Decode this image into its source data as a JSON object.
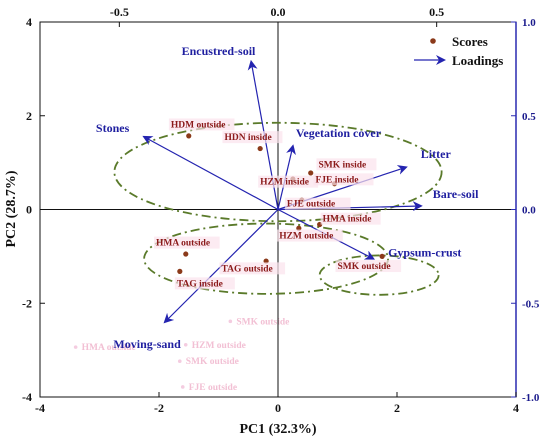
{
  "chart_data": {
    "type": "scatter",
    "title": "",
    "xlabel": "PC1 (32.3%)",
    "ylabel": "PC2 (28.7%)",
    "xlim": [
      -4,
      4
    ],
    "ylim": [
      -4,
      4
    ],
    "xticks": [
      "-4",
      "-2",
      "0",
      "2",
      "4"
    ],
    "yticks": [
      "-4",
      "-2",
      "0",
      "2",
      "4"
    ],
    "top_axis": {
      "lim": [
        -0.75,
        0.75
      ],
      "ticks": [
        "-0.5",
        "0.0",
        "0.5"
      ],
      "tick_values": [
        -0.5,
        0,
        0.5
      ]
    },
    "right_axis": {
      "lim": [
        -1.0,
        1.0
      ],
      "ticks": [
        "-1.0",
        "-0.5",
        "0.0",
        "0.5",
        "1.0"
      ],
      "tick_values": [
        -1.0,
        -0.5,
        0,
        0.5,
        1.0
      ]
    },
    "legend": {
      "placement": "top-right",
      "items": [
        {
          "label": "Scores",
          "marker": "dot",
          "color": "#8b3a1a"
        },
        {
          "label": "Loadings",
          "marker": "arrow",
          "color": "#2424b0"
        }
      ]
    },
    "series": [
      {
        "name": "Scores",
        "points": [
          {
            "label": "HDM outside",
            "x": -1.5,
            "y": 1.57
          },
          {
            "label": "HDN inside",
            "x": -0.3,
            "y": 1.3
          },
          {
            "label": "SMK inside",
            "x": 0.55,
            "y": 0.78
          },
          {
            "label": "HZM inside",
            "x": 0.25,
            "y": 0.65
          },
          {
            "label": "FJE inside",
            "x": 0.95,
            "y": 0.55
          },
          {
            "label": "FJE outside",
            "x": 0.4,
            "y": 0.2
          },
          {
            "label": "HMA inside",
            "x": 0.7,
            "y": -0.32
          },
          {
            "label": "HZM outside",
            "x": 0.35,
            "y": -0.4
          },
          {
            "label": "HMA outside",
            "x": -1.55,
            "y": -0.95
          },
          {
            "label": "TAG outside",
            "x": -0.2,
            "y": -1.1
          },
          {
            "label": "TAG inside",
            "x": -1.65,
            "y": -1.32
          },
          {
            "label": "SMK outside",
            "x": 1.75,
            "y": -1.0
          }
        ]
      },
      {
        "name": "Loadings",
        "arrows": [
          {
            "label": "Encustred-soil",
            "x": -0.09,
            "y": 0.63
          },
          {
            "label": "Stones",
            "x": -0.45,
            "y": 0.31
          },
          {
            "label": "Vegetation cover",
            "x": 0.05,
            "y": 0.27
          },
          {
            "label": "Litter",
            "x": 0.43,
            "y": 0.18
          },
          {
            "label": "Bare-soil",
            "x": 0.48,
            "y": 0.015
          },
          {
            "label": "Gypsum-crust",
            "x": 0.32,
            "y": -0.21
          },
          {
            "label": "Moving-sand",
            "x": -0.38,
            "y": -0.48
          }
        ]
      }
    ],
    "ellipses": [
      {
        "cx": 0.0,
        "cy": 0.8,
        "rx": 2.75,
        "ry": 1.05
      },
      {
        "cx": -0.2,
        "cy": -1.05,
        "rx": 2.05,
        "ry": 0.75
      },
      {
        "cx": 1.7,
        "cy": -1.4,
        "rx": 1.0,
        "ry": 0.42
      }
    ],
    "faint_labels": [
      {
        "text": "SMK outside",
        "x": -0.7,
        "y": -2.45
      },
      {
        "text": "HZM outside",
        "x": -1.45,
        "y": -2.95
      },
      {
        "text": "SMK outside",
        "x": -1.55,
        "y": -3.3
      },
      {
        "text": "HMA outside",
        "x": -3.3,
        "y": -3.0
      },
      {
        "text": "FJE outside",
        "x": -1.5,
        "y": -3.85
      }
    ]
  }
}
